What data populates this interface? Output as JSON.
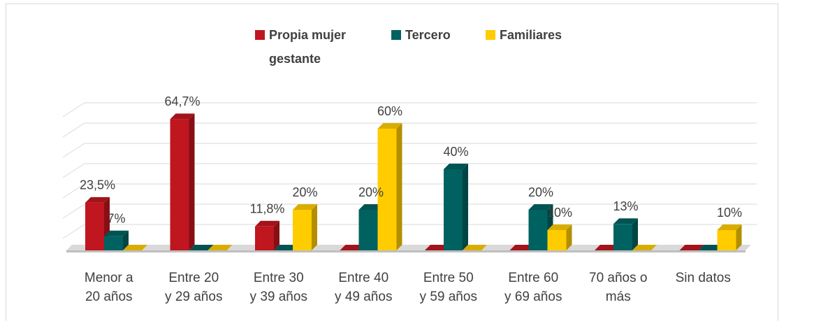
{
  "chart_data": {
    "type": "bar3d",
    "categories": [
      "Menor a\n20 años",
      "Entre 20\ny 29 años",
      "Entre 30\ny 39 años",
      "Entre 40\ny 49 años",
      "Entre 50\ny 59 años",
      "Entre 60\ny 69 años",
      "70 años o\nmás",
      "Sin datos"
    ],
    "series": [
      {
        "name": "Propia mujer\ngestante",
        "color": "#c0161f",
        "values": [
          23.5,
          64.7,
          11.8,
          0,
          0,
          0,
          0,
          0
        ],
        "value_labels": [
          "23,5%",
          "64,7%",
          "11,8%",
          null,
          null,
          null,
          null,
          null
        ]
      },
      {
        "name": "Tercero",
        "color": "#006260",
        "values": [
          7,
          0,
          0,
          20,
          40,
          20,
          13,
          0
        ],
        "value_labels": [
          "7%",
          null,
          null,
          "20%",
          "40%",
          "20%",
          "13%",
          null
        ]
      },
      {
        "name": "Familiares",
        "color": "#ffcc00",
        "values": [
          0,
          0,
          20,
          60,
          0,
          10,
          0,
          10
        ],
        "value_labels": [
          null,
          null,
          "20%",
          "60%",
          null,
          "10%",
          null,
          "10%"
        ]
      }
    ],
    "ylim": [
      0,
      70
    ],
    "yticks": [
      0,
      10,
      20,
      30,
      40,
      50,
      60,
      70
    ],
    "grid": true,
    "show_tick_labels": false,
    "legend": "top"
  }
}
